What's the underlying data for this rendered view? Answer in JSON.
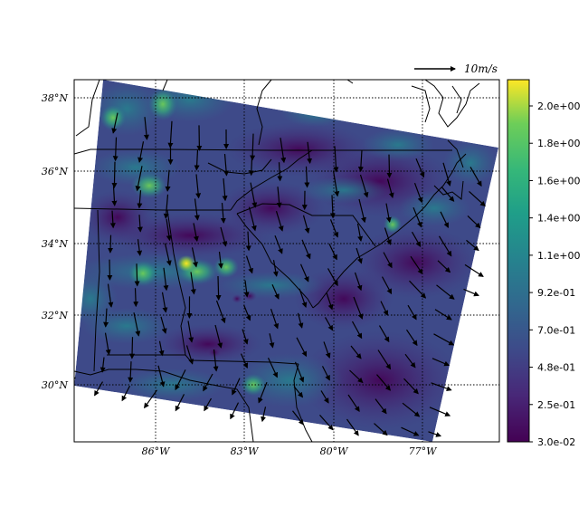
{
  "map": {
    "lat_labels": [
      "38°N",
      "36°N",
      "34°N",
      "32°N",
      "30°N"
    ],
    "lon_labels": [
      "86°W",
      "83°W",
      "80°W",
      "77°W"
    ]
  },
  "quiver_key": {
    "label": "10m/s",
    "arrow_color": "#000000"
  },
  "colorbar": {
    "colormap": "viridis",
    "tick_labels": [
      "2.0e+00",
      "1.8e+00",
      "1.6e+00",
      "1.4e+00",
      "1.1e+00",
      "9.2e-01",
      "7.0e-01",
      "4.8e-01",
      "2.5e-01",
      "3.0e-02"
    ],
    "min": 0.03,
    "max": 2.15
  },
  "colors": {
    "dark": "#440154",
    "deep_blue": "#3b528b",
    "mid": "#21918c",
    "green": "#5ec962",
    "yellow": "#fde725",
    "coastline": "#000000",
    "grid": "#000000"
  }
}
